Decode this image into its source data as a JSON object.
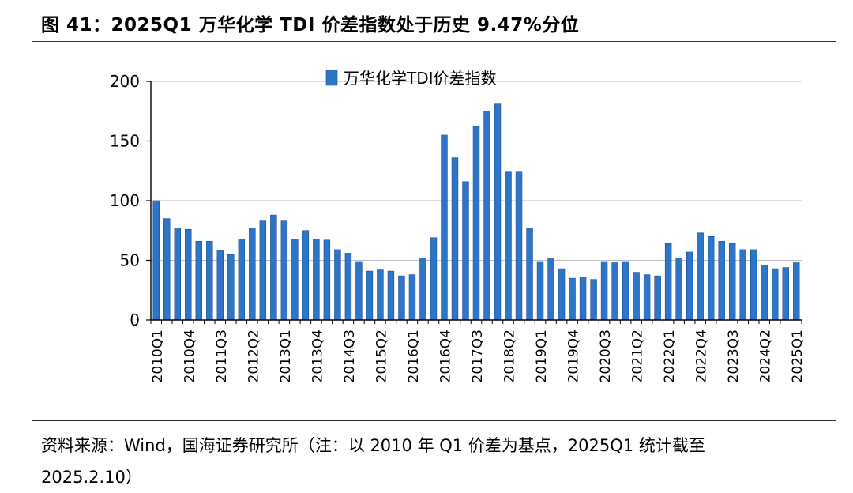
{
  "figure": {
    "title": "图 41：2025Q1 万华化学 TDI 价差指数处于历史 9.47%分位",
    "source_line1": "资料来源：Wind，国海证券研究所（注：以 2010 年 Q1 价差为基点，2025Q1 统计截至",
    "source_line2": "2025.2.10）"
  },
  "chart_data": {
    "type": "bar",
    "title": "",
    "xlabel": "",
    "ylabel": "",
    "ylim": [
      0,
      200
    ],
    "yticks": [
      0,
      50,
      100,
      150,
      200
    ],
    "grid": true,
    "legend_position": "top-center",
    "series": [
      {
        "name": "万华化学TDI价差指数",
        "color": "#2E75C8",
        "values": [
          100,
          85,
          77,
          76,
          66,
          66,
          58,
          55,
          68,
          77,
          83,
          88,
          83,
          68,
          75,
          68,
          67,
          59,
          56,
          49,
          41,
          42,
          41,
          37,
          38,
          52,
          69,
          155,
          136,
          116,
          162,
          175,
          181,
          124,
          124,
          77,
          49,
          52,
          43,
          35,
          36,
          34,
          49,
          48,
          49,
          40,
          38,
          37,
          64,
          52,
          57,
          73,
          70,
          66,
          64,
          59,
          59,
          46,
          43,
          44,
          48
        ]
      }
    ],
    "categories": [
      "2010Q1",
      "2010Q2",
      "2010Q3",
      "2010Q4",
      "2011Q1",
      "2011Q2",
      "2011Q3",
      "2011Q4",
      "2012Q1",
      "2012Q2",
      "2012Q3",
      "2012Q4",
      "2013Q1",
      "2013Q2",
      "2013Q3",
      "2013Q4",
      "2014Q1",
      "2014Q2",
      "2014Q3",
      "2014Q4",
      "2015Q1",
      "2015Q2",
      "2015Q3",
      "2015Q4",
      "2016Q1",
      "2016Q2",
      "2016Q3",
      "2016Q4",
      "2017Q1",
      "2017Q2",
      "2017Q3",
      "2017Q4",
      "2018Q1",
      "2018Q2",
      "2018Q3",
      "2018Q4",
      "2019Q1",
      "2019Q2",
      "2019Q3",
      "2019Q4",
      "2020Q1",
      "2020Q2",
      "2020Q3",
      "2020Q4",
      "2021Q1",
      "2021Q2",
      "2021Q3",
      "2021Q4",
      "2022Q1",
      "2022Q2",
      "2022Q3",
      "2022Q4",
      "2023Q1",
      "2023Q2",
      "2023Q3",
      "2023Q4",
      "2024Q1",
      "2024Q2",
      "2024Q3",
      "2024Q4",
      "2025Q1"
    ],
    "x_tick_labels": [
      "2010Q1",
      "2010Q4",
      "2011Q3",
      "2012Q2",
      "2013Q1",
      "2013Q4",
      "2014Q3",
      "2015Q2",
      "2016Q1",
      "2016Q4",
      "2017Q3",
      "2018Q2",
      "2019Q1",
      "2019Q4",
      "2020Q3",
      "2021Q2",
      "2022Q1",
      "2022Q4",
      "2023Q3",
      "2024Q2",
      "2025Q1"
    ]
  }
}
